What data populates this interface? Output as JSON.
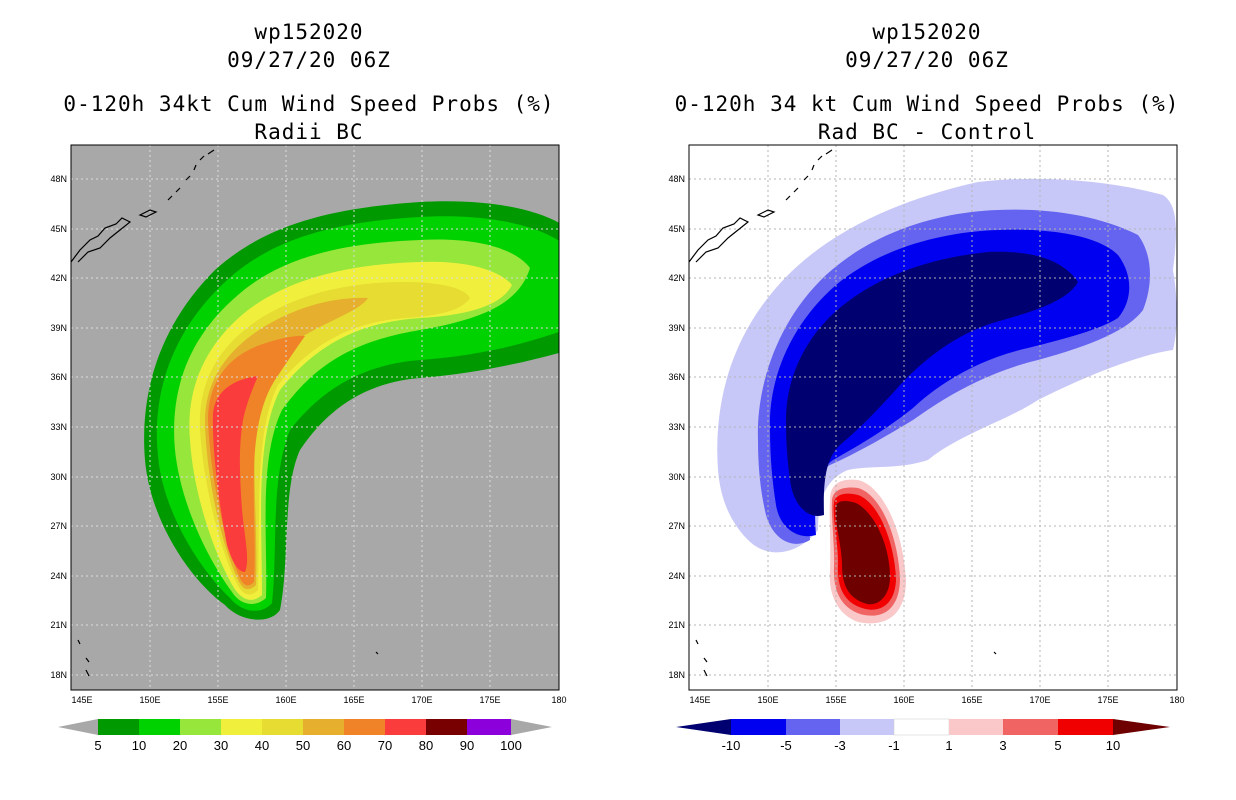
{
  "left_panel": {
    "storm_id": "wp152020",
    "datetime": "09/27/20 06Z",
    "product": "0-120h 34kt Cum Wind Speed Probs (%)",
    "subtitle": "Radii BC",
    "lat_labels": [
      "48N",
      "45N",
      "42N",
      "39N",
      "36N",
      "33N",
      "30N",
      "27N",
      "24N",
      "21N",
      "18N"
    ],
    "lon_labels": [
      "145E",
      "150E",
      "155E",
      "160E",
      "165E",
      "170E",
      "175E",
      "180"
    ],
    "legend_labels": [
      "5",
      "10",
      "20",
      "30",
      "40",
      "50",
      "60",
      "70",
      "80",
      "90",
      "100"
    ],
    "legend_colors": [
      "#009a00",
      "#00d200",
      "#96e63c",
      "#f0f03c",
      "#e6dc32",
      "#e6af2d",
      "#f08228",
      "#fa3c3c",
      "#780000",
      "#8c00dc"
    ],
    "background_color": "#a8a8a8"
  },
  "right_panel": {
    "storm_id": "wp152020",
    "datetime": "09/27/20 06Z",
    "product": "0-120h 34 kt Cum Wind Speed Probs (%)",
    "subtitle": "Rad BC - Control",
    "lat_labels": [
      "48N",
      "45N",
      "42N",
      "39N",
      "36N",
      "33N",
      "30N",
      "27N",
      "24N",
      "21N",
      "18N"
    ],
    "lon_labels": [
      "145E",
      "150E",
      "155E",
      "160E",
      "165E",
      "170E",
      "175E",
      "180"
    ],
    "legend_labels": [
      "-10",
      "-5",
      "-3",
      "-1",
      "1",
      "3",
      "5",
      "10"
    ],
    "legend_colors": [
      "#000070",
      "#0000f0",
      "#6464f0",
      "#c8c8f8",
      "#ffffff",
      "#fac8c8",
      "#f06464",
      "#f00000",
      "#6e0000"
    ],
    "background_color": "#ffffff"
  }
}
